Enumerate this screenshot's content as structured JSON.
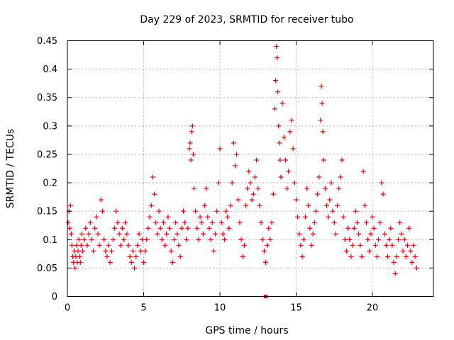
{
  "chart_data": {
    "type": "scatter",
    "title": "Day 229 of 2023, SRMTID for receiver tubo",
    "xlabel": "GPS time / hours",
    "ylabel": "SRMTID / TECUs",
    "xlim": [
      0,
      24.0
    ],
    "ylim": [
      0,
      0.45
    ],
    "x_ticks": [
      0,
      5,
      10,
      15,
      20
    ],
    "x_tick_labels": [
      "0",
      "5",
      "10",
      "15",
      "20"
    ],
    "y_ticks": [
      0,
      0.05,
      0.1,
      0.15,
      0.2,
      0.25,
      0.3,
      0.35,
      0.4,
      0.45
    ],
    "y_tick_labels": [
      "0",
      "0.05",
      "0.1",
      "0.15",
      "0.2",
      "0.25",
      "0.3",
      "0.35",
      "0.4",
      "0.45"
    ],
    "grid": true,
    "marker": "+",
    "color": "#e8000b",
    "series": [
      {
        "name": "SRMTID",
        "points": [
          [
            0.05,
            0.13
          ],
          [
            0.1,
            0.15
          ],
          [
            0.15,
            0.12
          ],
          [
            0.2,
            0.16
          ],
          [
            0.25,
            0.11
          ],
          [
            0.3,
            0.09
          ],
          [
            0.35,
            0.07
          ],
          [
            0.4,
            0.06
          ],
          [
            0.45,
            0.08
          ],
          [
            0.5,
            0.05
          ],
          [
            0.55,
            0.07
          ],
          [
            0.6,
            0.09
          ],
          [
            0.65,
            0.06
          ],
          [
            0.7,
            0.08
          ],
          [
            0.75,
            0.1
          ],
          [
            0.8,
            0.07
          ],
          [
            0.85,
            0.06
          ],
          [
            0.9,
            0.09
          ],
          [
            0.95,
            0.11
          ],
          [
            1.0,
            0.08
          ],
          [
            1.1,
            0.1
          ],
          [
            1.2,
            0.12
          ],
          [
            1.3,
            0.09
          ],
          [
            1.4,
            0.11
          ],
          [
            1.5,
            0.13
          ],
          [
            1.6,
            0.1
          ],
          [
            1.7,
            0.08
          ],
          [
            1.8,
            0.12
          ],
          [
            1.9,
            0.14
          ],
          [
            2.0,
            0.11
          ],
          [
            2.1,
            0.09
          ],
          [
            2.2,
            0.17
          ],
          [
            2.3,
            0.15
          ],
          [
            2.4,
            0.1
          ],
          [
            2.5,
            0.08
          ],
          [
            2.6,
            0.07
          ],
          [
            2.7,
            0.09
          ],
          [
            2.8,
            0.06
          ],
          [
            2.9,
            0.08
          ],
          [
            3.0,
            0.1
          ],
          [
            3.1,
            0.12
          ],
          [
            3.2,
            0.15
          ],
          [
            3.3,
            0.13
          ],
          [
            3.4,
            0.11
          ],
          [
            3.5,
            0.09
          ],
          [
            3.6,
            0.12
          ],
          [
            3.7,
            0.1
          ],
          [
            3.8,
            0.13
          ],
          [
            3.9,
            0.11
          ],
          [
            4.0,
            0.09
          ],
          [
            4.1,
            0.07
          ],
          [
            4.2,
            0.06
          ],
          [
            4.3,
            0.08
          ],
          [
            4.4,
            0.05
          ],
          [
            4.5,
            0.07
          ],
          [
            4.6,
            0.09
          ],
          [
            4.7,
            0.11
          ],
          [
            4.8,
            0.08
          ],
          [
            4.9,
            0.1
          ],
          [
            5.0,
            0.06
          ],
          [
            5.1,
            0.08
          ],
          [
            5.2,
            0.1
          ],
          [
            5.3,
            0.12
          ],
          [
            5.4,
            0.14
          ],
          [
            5.5,
            0.16
          ],
          [
            5.6,
            0.21
          ],
          [
            5.7,
            0.18
          ],
          [
            5.8,
            0.13
          ],
          [
            5.9,
            0.11
          ],
          [
            6.0,
            0.15
          ],
          [
            6.1,
            0.12
          ],
          [
            6.2,
            0.1
          ],
          [
            6.3,
            0.13
          ],
          [
            6.4,
            0.09
          ],
          [
            6.5,
            0.11
          ],
          [
            6.6,
            0.14
          ],
          [
            6.7,
            0.12
          ],
          [
            6.8,
            0.08
          ],
          [
            6.9,
            0.06
          ],
          [
            7.0,
            0.1
          ],
          [
            7.1,
            0.13
          ],
          [
            7.2,
            0.11
          ],
          [
            7.3,
            0.09
          ],
          [
            7.4,
            0.07
          ],
          [
            7.5,
            0.12
          ],
          [
            7.6,
            0.15
          ],
          [
            7.7,
            0.13
          ],
          [
            7.8,
            0.1
          ],
          [
            7.9,
            0.12
          ],
          [
            8.0,
            0.26
          ],
          [
            8.05,
            0.27
          ],
          [
            8.1,
            0.24
          ],
          [
            8.15,
            0.29
          ],
          [
            8.2,
            0.3
          ],
          [
            8.25,
            0.25
          ],
          [
            8.3,
            0.19
          ],
          [
            8.4,
            0.15
          ],
          [
            8.5,
            0.12
          ],
          [
            8.6,
            0.1
          ],
          [
            8.7,
            0.14
          ],
          [
            8.8,
            0.13
          ],
          [
            8.9,
            0.11
          ],
          [
            9.0,
            0.16
          ],
          [
            9.1,
            0.19
          ],
          [
            9.2,
            0.14
          ],
          [
            9.3,
            0.12
          ],
          [
            9.4,
            0.1
          ],
          [
            9.5,
            0.13
          ],
          [
            9.6,
            0.08
          ],
          [
            9.7,
            0.11
          ],
          [
            9.8,
            0.15
          ],
          [
            9.9,
            0.2
          ],
          [
            10.0,
            0.26
          ],
          [
            10.1,
            0.13
          ],
          [
            10.2,
            0.11
          ],
          [
            10.3,
            0.1
          ],
          [
            10.4,
            0.15
          ],
          [
            10.5,
            0.14
          ],
          [
            10.6,
            0.12
          ],
          [
            10.7,
            0.16
          ],
          [
            10.8,
            0.2
          ],
          [
            10.9,
            0.27
          ],
          [
            11.0,
            0.23
          ],
          [
            11.1,
            0.25
          ],
          [
            11.2,
            0.17
          ],
          [
            11.3,
            0.13
          ],
          [
            11.4,
            0.1
          ],
          [
            11.5,
            0.07
          ],
          [
            11.6,
            0.09
          ],
          [
            11.7,
            0.16
          ],
          [
            11.8,
            0.19
          ],
          [
            11.9,
            0.22
          ],
          [
            12.0,
            0.2
          ],
          [
            12.1,
            0.17
          ],
          [
            12.2,
            0.18
          ],
          [
            12.3,
            0.21
          ],
          [
            12.4,
            0.24
          ],
          [
            12.5,
            0.19
          ],
          [
            12.6,
            0.16
          ],
          [
            12.7,
            0.13
          ],
          [
            12.8,
            0.1
          ],
          [
            12.9,
            0.08
          ],
          [
            13.0,
            0.06
          ],
          [
            13.1,
            0.09
          ],
          [
            13.2,
            0.12
          ],
          [
            13.3,
            0.1
          ],
          [
            13.4,
            0.13
          ],
          [
            13.5,
            0.18
          ],
          [
            13.6,
            0.33
          ],
          [
            13.65,
            0.38
          ],
          [
            13.7,
            0.44
          ],
          [
            13.75,
            0.42
          ],
          [
            13.8,
            0.36
          ],
          [
            13.85,
            0.3
          ],
          [
            13.9,
            0.27
          ],
          [
            13.95,
            0.24
          ],
          [
            14.0,
            0.21
          ],
          [
            14.1,
            0.34
          ],
          [
            14.2,
            0.28
          ],
          [
            14.3,
            0.24
          ],
          [
            14.4,
            0.19
          ],
          [
            14.5,
            0.22
          ],
          [
            14.6,
            0.29
          ],
          [
            14.7,
            0.31
          ],
          [
            14.8,
            0.26
          ],
          [
            14.9,
            0.2
          ],
          [
            15.0,
            0.17
          ],
          [
            15.1,
            0.14
          ],
          [
            15.2,
            0.11
          ],
          [
            15.3,
            0.09
          ],
          [
            15.4,
            0.07
          ],
          [
            15.5,
            0.1
          ],
          [
            15.6,
            0.14
          ],
          [
            15.7,
            0.19
          ],
          [
            15.8,
            0.16
          ],
          [
            15.9,
            0.12
          ],
          [
            16.0,
            0.09
          ],
          [
            16.1,
            0.11
          ],
          [
            16.2,
            0.13
          ],
          [
            16.3,
            0.15
          ],
          [
            16.4,
            0.18
          ],
          [
            16.5,
            0.21
          ],
          [
            16.6,
            0.31
          ],
          [
            16.65,
            0.37
          ],
          [
            16.7,
            0.34
          ],
          [
            16.75,
            0.29
          ],
          [
            16.8,
            0.24
          ],
          [
            16.9,
            0.19
          ],
          [
            17.0,
            0.16
          ],
          [
            17.1,
            0.14
          ],
          [
            17.2,
            0.17
          ],
          [
            17.3,
            0.2
          ],
          [
            17.4,
            0.15
          ],
          [
            17.5,
            0.13
          ],
          [
            17.6,
            0.11
          ],
          [
            17.7,
            0.16
          ],
          [
            17.8,
            0.19
          ],
          [
            17.9,
            0.21
          ],
          [
            18.0,
            0.24
          ],
          [
            18.1,
            0.14
          ],
          [
            18.2,
            0.1
          ],
          [
            18.3,
            0.08
          ],
          [
            18.4,
            0.12
          ],
          [
            18.5,
            0.1
          ],
          [
            18.6,
            0.07
          ],
          [
            18.7,
            0.09
          ],
          [
            18.8,
            0.12
          ],
          [
            18.9,
            0.15
          ],
          [
            19.0,
            0.13
          ],
          [
            19.1,
            0.11
          ],
          [
            19.2,
            0.09
          ],
          [
            19.3,
            0.07
          ],
          [
            19.4,
            0.22
          ],
          [
            19.5,
            0.16
          ],
          [
            19.6,
            0.13
          ],
          [
            19.7,
            0.1
          ],
          [
            19.8,
            0.08
          ],
          [
            19.9,
            0.11
          ],
          [
            20.0,
            0.14
          ],
          [
            20.1,
            0.12
          ],
          [
            20.2,
            0.09
          ],
          [
            20.3,
            0.07
          ],
          [
            20.4,
            0.1
          ],
          [
            20.5,
            0.13
          ],
          [
            20.6,
            0.2
          ],
          [
            20.7,
            0.18
          ],
          [
            20.8,
            0.11
          ],
          [
            20.9,
            0.09
          ],
          [
            21.0,
            0.07
          ],
          [
            21.1,
            0.1
          ],
          [
            21.2,
            0.12
          ],
          [
            21.3,
            0.09
          ],
          [
            21.4,
            0.06
          ],
          [
            21.5,
            0.04
          ],
          [
            21.6,
            0.07
          ],
          [
            21.7,
            0.1
          ],
          [
            21.8,
            0.13
          ],
          [
            21.9,
            0.11
          ],
          [
            22.0,
            0.08
          ],
          [
            22.1,
            0.1
          ],
          [
            22.2,
            0.07
          ],
          [
            22.3,
            0.09
          ],
          [
            22.4,
            0.12
          ],
          [
            22.5,
            0.08
          ],
          [
            22.6,
            0.06
          ],
          [
            22.7,
            0.09
          ],
          [
            22.8,
            0.07
          ],
          [
            22.9,
            0.05
          ]
        ]
      }
    ],
    "zero_marker": {
      "x": 13.0,
      "y": 0.0
    }
  }
}
